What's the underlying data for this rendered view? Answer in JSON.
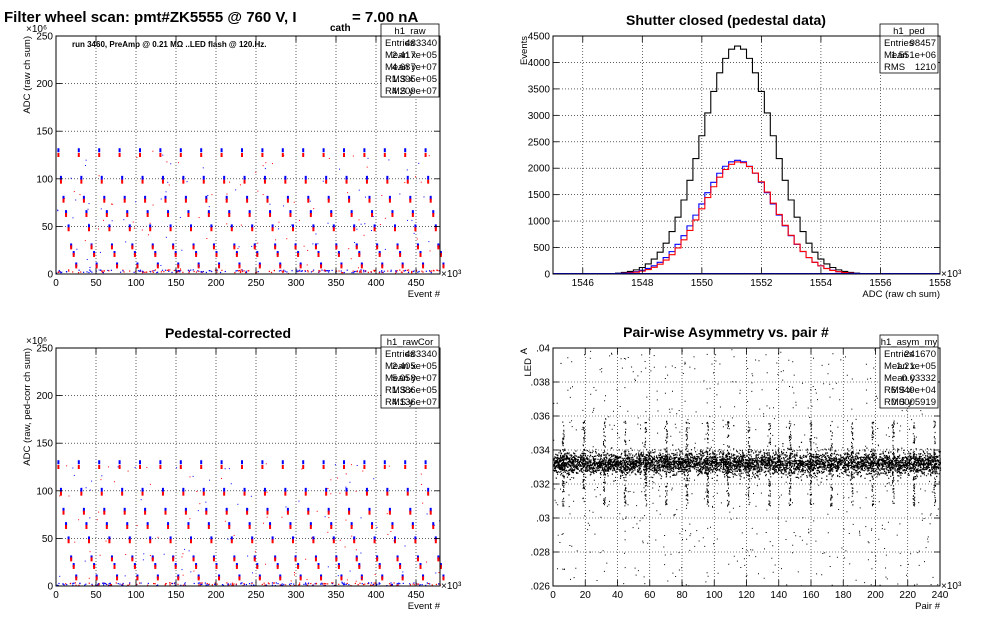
{
  "chart_data": [
    {
      "id": "p1",
      "type": "scatter",
      "title": "Filter wheel scan: pmt#ZK5555 @   760 V, I",
      "title_sub": "cath",
      "title_tail": " = 7.00 nA",
      "xlabel": "Event #",
      "ylabel": "ADC (raw ch sum)",
      "xlim": [
        0,
        480
      ],
      "ylim": [
        0,
        250
      ],
      "x_ticks": [
        0,
        50,
        100,
        150,
        200,
        250,
        300,
        350,
        400,
        450
      ],
      "y_ticks": [
        0,
        50,
        100,
        150,
        200,
        250
      ],
      "x_exp": "×10³",
      "y_exp": "×10⁶",
      "grid": true,
      "annotation": "run 3460, PreAmp @ 0.21 MΩ ..LED flash @  120.Hz.",
      "stats": {
        "name": "h1_raw",
        "rows": [
          [
            "Entries",
            "483340"
          ],
          [
            "Mean x",
            "2.417e+05"
          ],
          [
            "Mean y",
            "4.687e+07"
          ],
          [
            "RMS x",
            "1.395e+05"
          ],
          [
            "RMS y",
            "4.209e+07"
          ]
        ]
      },
      "series": [
        {
          "color": "#0000ff",
          "levels": [
            130,
            101,
            80,
            65,
            50,
            30,
            22,
            10
          ]
        },
        {
          "color": "#ff0000",
          "levels": [
            125,
            97,
            77,
            62,
            47,
            28,
            20,
            8
          ]
        },
        {
          "color": "#000000",
          "levels": [
            2
          ]
        }
      ],
      "cycle_start": 3,
      "cycle_period": 25.5
    },
    {
      "id": "p2",
      "type": "histogram",
      "title": "Shutter closed (pedestal data)",
      "xlabel": "ADC (raw ch sum)",
      "ylabel": "Events",
      "xlim": [
        1545,
        1558
      ],
      "ylim": [
        0,
        4500
      ],
      "x_ticks": [
        1546,
        1548,
        1550,
        1552,
        1554,
        1556,
        1558
      ],
      "y_ticks": [
        0,
        500,
        1000,
        1500,
        2000,
        2500,
        3000,
        3500,
        4000,
        4500
      ],
      "x_exp": "×10³",
      "grid": true,
      "stats": {
        "name": "h1_ped",
        "rows": [
          [
            "Entries",
            "98457"
          ],
          [
            "Mean",
            "1.551e+06"
          ],
          [
            "RMS",
            "1210"
          ]
        ]
      },
      "series": [
        {
          "color": "#000000",
          "mean": 1551.2,
          "sigma": 1.2,
          "peak": 4310
        },
        {
          "color": "#0000ff",
          "mean": 1551.2,
          "sigma": 1.22,
          "peak": 2150
        },
        {
          "color": "#ff0000",
          "mean": 1551.25,
          "sigma": 1.2,
          "peak": 2120
        }
      ]
    },
    {
      "id": "p3",
      "type": "scatter",
      "title": "Pedestal-corrected",
      "xlabel": "Event #",
      "ylabel": "ADC (raw, ped-corr ch sum)",
      "xlim": [
        0,
        480
      ],
      "ylim": [
        0,
        250
      ],
      "x_ticks": [
        0,
        50,
        100,
        150,
        200,
        250,
        300,
        350,
        400,
        450
      ],
      "y_ticks": [
        0,
        50,
        100,
        150,
        200,
        250
      ],
      "x_exp": "×10³",
      "y_exp": "×10⁶",
      "grid": true,
      "stats": {
        "name": "h1_rawCor",
        "rows": [
          [
            "Entries",
            "483340"
          ],
          [
            "Mean x",
            "2.405e+05"
          ],
          [
            "Mean y",
            "5.058e+07"
          ],
          [
            "RMS x",
            "1.386e+05"
          ],
          [
            "RMS y",
            "4.136e+07"
          ]
        ]
      },
      "series": [
        {
          "color": "#0000ff",
          "levels": [
            130,
            101,
            80,
            65,
            50,
            30,
            22,
            10
          ]
        },
        {
          "color": "#ff0000",
          "levels": [
            125,
            97,
            77,
            62,
            47,
            28,
            20,
            8
          ]
        },
        {
          "color": "#000000",
          "levels": [
            1
          ]
        }
      ],
      "cycle_start": 3,
      "cycle_period": 25.5
    },
    {
      "id": "p4",
      "type": "scatter",
      "title": "Pair-wise Asymmetry vs. pair #",
      "xlabel": "Pair #",
      "ylabel": "A",
      "ylabel_sub": "LED",
      "xlim": [
        0,
        240
      ],
      "ylim": [
        0.026,
        0.04
      ],
      "x_ticks": [
        0,
        20,
        40,
        60,
        80,
        100,
        120,
        140,
        160,
        180,
        200,
        220,
        240
      ],
      "y_ticks": [
        0.026,
        0.028,
        0.03,
        0.032,
        0.034,
        0.036,
        0.038,
        0.04
      ],
      "x_exp": "×10³",
      "grid": true,
      "stats": {
        "name": "h1_asym_my",
        "rows": [
          [
            "Entries",
            "241670"
          ],
          [
            "Mean x",
            "1.21e+05"
          ],
          [
            "Mean y",
            "0.03332"
          ],
          [
            "RMS x",
            "6.949e+04"
          ],
          [
            "RMS y",
            "0.0005919"
          ]
        ]
      },
      "band_center": 0.0332,
      "band_halfwidth": 0.0006,
      "spike_period": 12.8,
      "spike_start": 6,
      "series": [
        {
          "color": "#000000"
        }
      ]
    }
  ]
}
